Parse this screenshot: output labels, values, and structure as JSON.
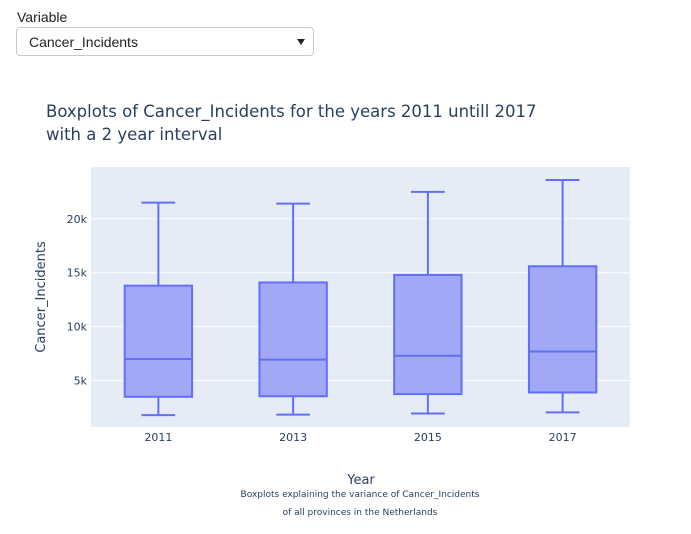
{
  "dropdown": {
    "label": "Variable",
    "selected": "Cancer_Incidents"
  },
  "chart_data": {
    "type": "box",
    "title_lines": [
      "Boxplots of Cancer_Incidents for the years 2011 untill 2017",
      "with a 2 year interval"
    ],
    "xlabel": "Year",
    "ylabel": "Cancer_Incidents",
    "caption_lines": [
      "Boxplots explaining the variance of Cancer_Incidents",
      "of all provinces in the Netherlands"
    ],
    "categories": [
      "2011",
      "2013",
      "2015",
      "2017"
    ],
    "y_ticks": [
      {
        "value": 5000,
        "label": "5k"
      },
      {
        "value": 10000,
        "label": "10k"
      },
      {
        "value": 15000,
        "label": "15k"
      },
      {
        "value": 20000,
        "label": "20k"
      }
    ],
    "ylim": [
      700,
      24800
    ],
    "boxes": [
      {
        "x": "2011",
        "min": 1800,
        "q1": 3500,
        "median": 7000,
        "q3": 13800,
        "max": 21500
      },
      {
        "x": "2013",
        "min": 1850,
        "q1": 3550,
        "median": 6950,
        "q3": 14100,
        "max": 21400
      },
      {
        "x": "2015",
        "min": 1950,
        "q1": 3750,
        "median": 7300,
        "q3": 14800,
        "max": 22500
      },
      {
        "x": "2017",
        "min": 2050,
        "q1": 3900,
        "median": 7700,
        "q3": 15600,
        "max": 23600
      }
    ],
    "grid": true,
    "colors": {
      "plot_bg": "#e5ecf6",
      "grid": "#ffffff",
      "box_line": "#636efa",
      "box_fill": "#a1a8f5"
    }
  }
}
